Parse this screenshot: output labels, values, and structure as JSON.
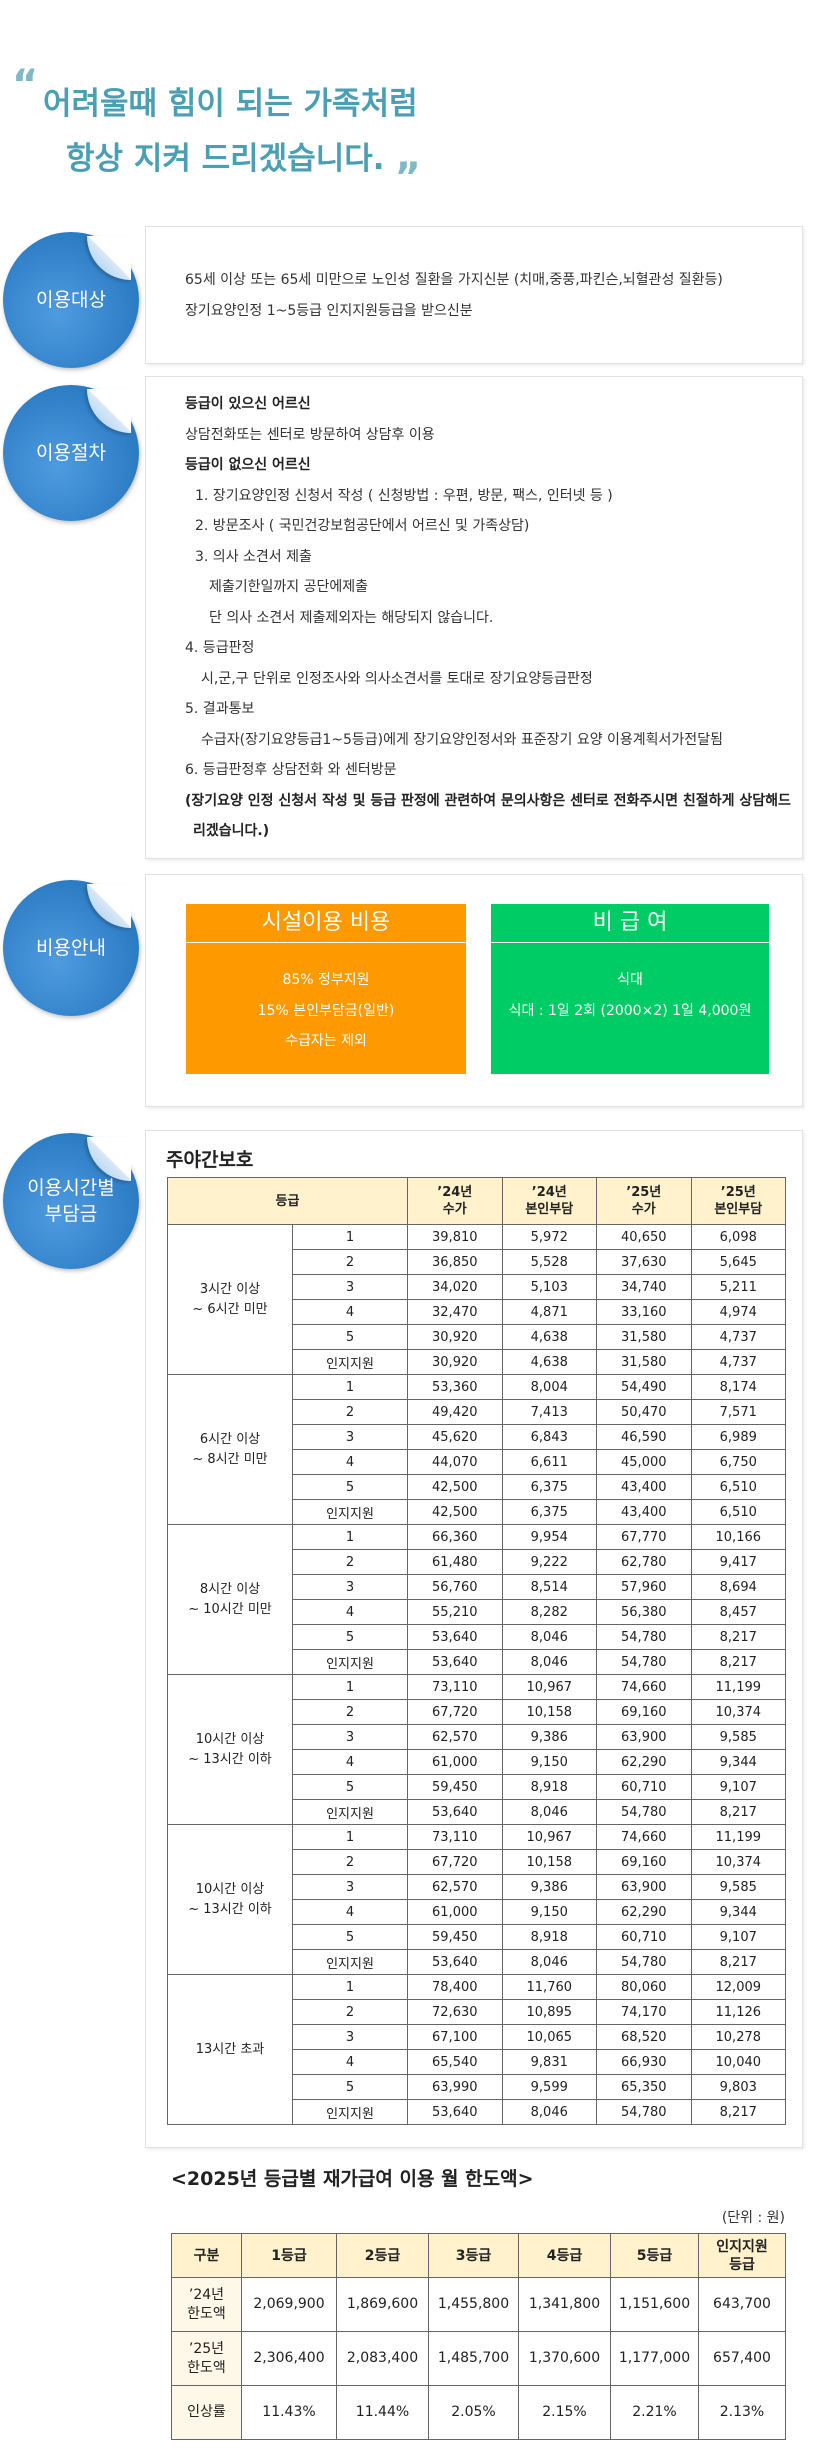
{
  "header": {
    "open_quote": "“",
    "line1": "어려울때 힘이 되는 가족처럼",
    "line2": "항상 지켜 드리겠습니다.",
    "close_quote": "„"
  },
  "target": {
    "badge": [
      "이용대상"
    ],
    "lines": [
      "65세 이상 또는 65세 미만으로 노인성 질환을 가지신분 (치매,중풍,파킨슨,뇌혈관성 질환등)",
      "장기요양인정 1~5등급 인지지원등급을 받으신분"
    ]
  },
  "procedure": {
    "badge": [
      "이용절차"
    ],
    "groups": [
      {
        "heading": "등급이 있으신 어르신",
        "steps": [
          {
            "text": "상담전화또는 센터로 방문하여 상담후 이용"
          }
        ]
      },
      {
        "heading": "등급이 없으신 어르신",
        "steps": [
          {
            "text": "1. 장기요양인정 신청서 작성 ( 신청방법 : 우편, 방문, 팩스, 인터넷 등 )"
          },
          {
            "text": "2. 방문조사 ( 국민건강보험공단에서 어르신 및 가족상담)"
          },
          {
            "text": "3. 의사 소견서 제출",
            "notes": [
              "제출기한일까지 공단에제출",
              "단 의사 소견서 제출제외자는 해당되지 않습니다."
            ]
          },
          {
            "text": "4. 등급판정",
            "notes": [
              "시,군,구 단위로 인정조사와 의사소견서를 토대로 장기요양등급판정"
            ]
          },
          {
            "text": "5. 결과통보",
            "notes": [
              "수급자(장기요양등급1~5등급)에게 장기요양인정서와 표준장기 요양 이용계획서가전달됨"
            ]
          },
          {
            "text": "6. 등급판정후 상담전화 와 센터방문"
          }
        ]
      }
    ],
    "notice": "(장기요양 인정 신청서 작성 및 등급 판정에 관련하여 문의사항은 센터로 전화주시면 친절하게 상담해드리겠습니다.)"
  },
  "cost": {
    "badge": [
      "비용안내"
    ],
    "boxes": [
      {
        "title": "시설이용 비용",
        "lines": [
          "85% 정부지원",
          "15% 본인부담금(일반)",
          "수급자는 제외"
        ]
      },
      {
        "title": "비 급 여",
        "lines": [
          "식대",
          "식대 : 1일 2회 (2000×2) 1일 4,000원"
        ]
      }
    ]
  },
  "daycare": {
    "badge": [
      "이용시간별",
      "부담금"
    ],
    "title": "주야간보호",
    "header": [
      [
        "등급"
      ],
      [
        "’24년",
        "수가"
      ],
      [
        "’24년",
        "본인부담"
      ],
      [
        "’25년",
        "수가"
      ],
      [
        "’25년",
        "본인부담"
      ]
    ],
    "groups": [
      {
        "label": [
          "3시간 이상",
          "~ 6시간 미만"
        ],
        "rows": [
          [
            "1",
            "39,810",
            "5,972",
            "40,650",
            "6,098"
          ],
          [
            "2",
            "36,850",
            "5,528",
            "37,630",
            "5,645"
          ],
          [
            "3",
            "34,020",
            "5,103",
            "34,740",
            "5,211"
          ],
          [
            "4",
            "32,470",
            "4,871",
            "33,160",
            "4,974"
          ],
          [
            "5",
            "30,920",
            "4,638",
            "31,580",
            "4,737"
          ],
          [
            "인지지원",
            "30,920",
            "4,638",
            "31,580",
            "4,737"
          ]
        ]
      },
      {
        "label": [
          "6시간 이상",
          "~ 8시간 미만"
        ],
        "rows": [
          [
            "1",
            "53,360",
            "8,004",
            "54,490",
            "8,174"
          ],
          [
            "2",
            "49,420",
            "7,413",
            "50,470",
            "7,571"
          ],
          [
            "3",
            "45,620",
            "6,843",
            "46,590",
            "6,989"
          ],
          [
            "4",
            "44,070",
            "6,611",
            "45,000",
            "6,750"
          ],
          [
            "5",
            "42,500",
            "6,375",
            "43,400",
            "6,510"
          ],
          [
            "인지지원",
            "42,500",
            "6,375",
            "43,400",
            "6,510"
          ]
        ]
      },
      {
        "label": [
          "8시간 이상",
          "~ 10시간 미만"
        ],
        "rows": [
          [
            "1",
            "66,360",
            "9,954",
            "67,770",
            "10,166"
          ],
          [
            "2",
            "61,480",
            "9,222",
            "62,780",
            "9,417"
          ],
          [
            "3",
            "56,760",
            "8,514",
            "57,960",
            "8,694"
          ],
          [
            "4",
            "55,210",
            "8,282",
            "56,380",
            "8,457"
          ],
          [
            "5",
            "53,640",
            "8,046",
            "54,780",
            "8,217"
          ],
          [
            "인지지원",
            "53,640",
            "8,046",
            "54,780",
            "8,217"
          ]
        ]
      },
      {
        "label": [
          "10시간 이상",
          "~ 13시간 이하"
        ],
        "rows": [
          [
            "1",
            "73,110",
            "10,967",
            "74,660",
            "11,199"
          ],
          [
            "2",
            "67,720",
            "10,158",
            "69,160",
            "10,374"
          ],
          [
            "3",
            "62,570",
            "9,386",
            "63,900",
            "9,585"
          ],
          [
            "4",
            "61,000",
            "9,150",
            "62,290",
            "9,344"
          ],
          [
            "5",
            "59,450",
            "8,918",
            "60,710",
            "9,107"
          ],
          [
            "인지지원",
            "53,640",
            "8,046",
            "54,780",
            "8,217"
          ]
        ]
      },
      {
        "label": [
          "10시간 이상",
          "~ 13시간 이하"
        ],
        "rows": [
          [
            "1",
            "73,110",
            "10,967",
            "74,660",
            "11,199"
          ],
          [
            "2",
            "67,720",
            "10,158",
            "69,160",
            "10,374"
          ],
          [
            "3",
            "62,570",
            "9,386",
            "63,900",
            "9,585"
          ],
          [
            "4",
            "61,000",
            "9,150",
            "62,290",
            "9,344"
          ],
          [
            "5",
            "59,450",
            "8,918",
            "60,710",
            "9,107"
          ],
          [
            "인지지원",
            "53,640",
            "8,046",
            "54,780",
            "8,217"
          ]
        ]
      },
      {
        "label": [
          "13시간 초과"
        ],
        "rows": [
          [
            "1",
            "78,400",
            "11,760",
            "80,060",
            "12,009"
          ],
          [
            "2",
            "72,630",
            "10,895",
            "74,170",
            "11,126"
          ],
          [
            "3",
            "67,100",
            "10,065",
            "68,520",
            "10,278"
          ],
          [
            "4",
            "65,540",
            "9,831",
            "66,930",
            "10,040"
          ],
          [
            "5",
            "63,990",
            "9,599",
            "65,350",
            "9,803"
          ],
          [
            "인지지원",
            "53,640",
            "8,046",
            "54,780",
            "8,217"
          ]
        ]
      }
    ]
  },
  "limits": {
    "title": "<2025년 등급별 재가급여 이용 월 한도액>",
    "unit": "(단위 : 원)",
    "header": [
      [
        "구분"
      ],
      [
        "1등급"
      ],
      [
        "2등급"
      ],
      [
        "3등급"
      ],
      [
        "4등급"
      ],
      [
        "5등급"
      ],
      [
        "인지지원",
        "등급"
      ]
    ],
    "rows": [
      [
        [
          "’24년",
          "한도액"
        ],
        "2,069,900",
        "1,869,600",
        "1,455,800",
        "1,341,800",
        "1,151,600",
        "643,700"
      ],
      [
        [
          "’25년",
          "한도액"
        ],
        "2,306,400",
        "2,083,400",
        "1,485,700",
        "1,370,600",
        "1,177,000",
        "657,400"
      ],
      [
        [
          "인상률"
        ],
        "11.43%",
        "11.44%",
        "2.05%",
        "2.15%",
        "2.21%",
        "2.13%"
      ]
    ]
  }
}
